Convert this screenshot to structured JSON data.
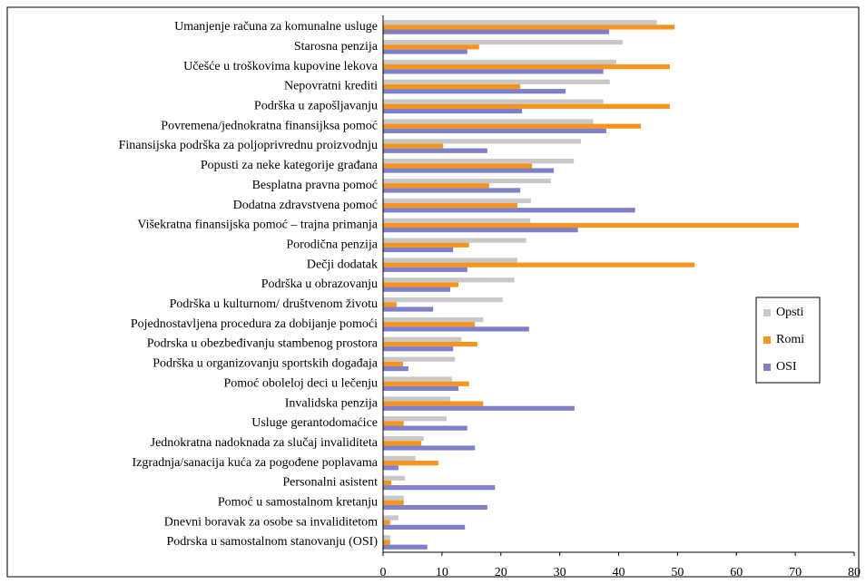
{
  "chart_data": {
    "type": "bar",
    "orientation": "horizontal",
    "categories": [
      "Umanjenje računa za komunalne usluge",
      "Starosna penzija",
      "Učešće u troškovima kupovine lekova",
      "Nepovratni krediti",
      "Podrška u zapošljavanju",
      "Povremena/jednokratna finansijksa pomoć",
      "Finansijska podrška za poljoprivrednu proizvodnju",
      "Popusti za neke kategorije građana",
      "Besplatna pravna pomoć",
      "Dodatna zdravstvena pomoć",
      "Višekratna finansijska pomoć – trajna primanja",
      "Porodična penzija",
      "Dečji dodatak",
      "Podrška u obrazovanju",
      "Podrška u kulturnom/ društvenom životu",
      "Pojednostavljena procedura za dobijanje pomoći",
      "Podrska u obezbeđivanju stambenog prostora",
      "Podrška u organizovanju sportskih događaja",
      "Pomoć oboleloj deci u lečenju",
      "Invalidska penzija",
      "Usluge gerantodomaćice",
      "Jednokratna nadoknada za slučaj invaliditeta",
      "Izgradnja/sanacija kuća za pogođene poplavama",
      "Personalni asistent",
      "Pomoć u samostalnom kretanju",
      "Dnevni boravak za osobe sa invaliditetom",
      "Podrska u samostalnom stanovanju (OSI)"
    ],
    "series": [
      {
        "name": "Opsti",
        "color": "#c8c8c8",
        "values": [
          46.5,
          40.7,
          39.6,
          38.5,
          37.4,
          35.7,
          33.6,
          32.4,
          28.5,
          25.1,
          25.0,
          24.3,
          22.8,
          22.3,
          20.3,
          17.0,
          13.3,
          12.2,
          11.7,
          11.4,
          10.8,
          6.9,
          5.5,
          3.7,
          3.5,
          2.6,
          1.2
        ]
      },
      {
        "name": "Romi",
        "color": "#f7941d",
        "values": [
          49.5,
          16.3,
          48.7,
          23.3,
          48.7,
          43.8,
          10.2,
          25.3,
          18.0,
          22.8,
          70.6,
          14.6,
          52.9,
          12.8,
          2.3,
          15.6,
          16.0,
          3.4,
          14.6,
          17.0,
          3.5,
          6.5,
          9.4,
          1.4,
          3.5,
          1.2,
          1.2
        ]
      },
      {
        "name": "OSI",
        "color": "#8080c8",
        "values": [
          38.4,
          14.3,
          37.4,
          31.0,
          23.6,
          37.9,
          17.7,
          29.0,
          23.3,
          42.8,
          33.1,
          11.9,
          14.3,
          11.4,
          8.5,
          24.8,
          11.9,
          4.3,
          12.8,
          32.5,
          14.3,
          15.6,
          2.6,
          19.0,
          17.7,
          13.9,
          7.5
        ]
      }
    ],
    "xlim": [
      0,
      80
    ],
    "xticks": [
      0,
      10,
      20,
      30,
      40,
      50,
      60,
      70,
      80
    ],
    "legend": "right"
  }
}
